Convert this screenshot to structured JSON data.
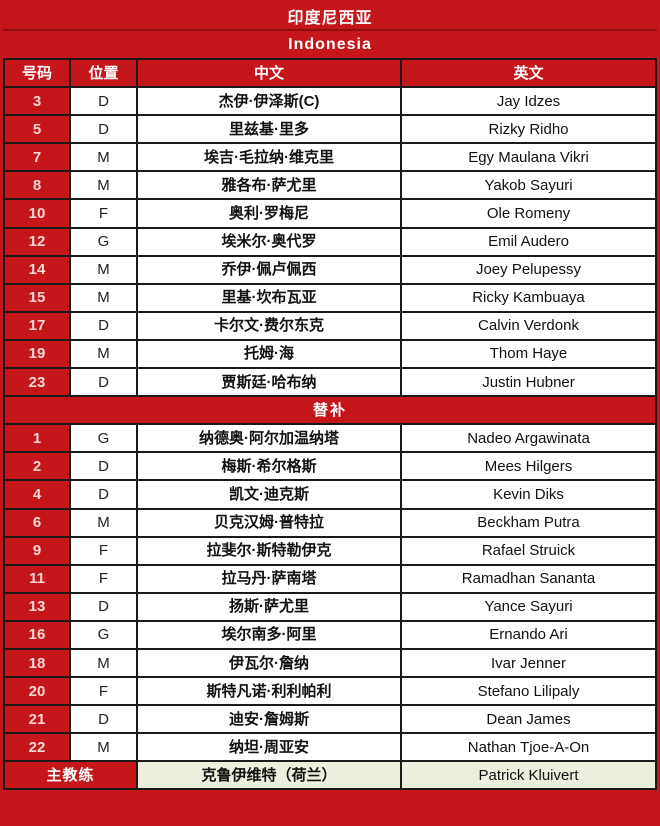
{
  "header": {
    "title_zh": "印度尼西亚",
    "title_en": "Indonesia"
  },
  "columns": [
    "号码",
    "位置",
    "中文",
    "英文"
  ],
  "sections": [
    {
      "label": null,
      "players": [
        [
          "3",
          "D",
          "杰伊·伊泽斯(C)",
          "Jay Idzes"
        ],
        [
          "5",
          "D",
          "里兹基·里多",
          "Rizky Ridho"
        ],
        [
          "7",
          "M",
          "埃吉·毛拉纳·维克里",
          "Egy Maulana Vikri"
        ],
        [
          "8",
          "M",
          "雅各布·萨尤里",
          "Yakob Sayuri"
        ],
        [
          "10",
          "F",
          "奥利·罗梅尼",
          "Ole Romeny"
        ],
        [
          "12",
          "G",
          "埃米尔·奥代罗",
          "Emil Audero"
        ],
        [
          "14",
          "M",
          "乔伊·佩卢佩西",
          "Joey Pelupessy"
        ],
        [
          "15",
          "M",
          "里基·坎布瓦亚",
          "Ricky Kambuaya"
        ],
        [
          "17",
          "D",
          "卡尔文·费尔东克",
          "Calvin Verdonk"
        ],
        [
          "19",
          "M",
          "托姆·海",
          "Thom Haye"
        ],
        [
          "23",
          "D",
          "贾斯廷·哈布纳",
          "Justin Hubner"
        ]
      ]
    },
    {
      "label": "替补",
      "players": [
        [
          "1",
          "G",
          "纳德奥·阿尔加温纳塔",
          "Nadeo Argawinata"
        ],
        [
          "2",
          "D",
          "梅斯·希尔格斯",
          "Mees Hilgers"
        ],
        [
          "4",
          "D",
          "凯文·迪克斯",
          "Kevin Diks"
        ],
        [
          "6",
          "M",
          "贝克汉姆·普特拉",
          "Beckham Putra"
        ],
        [
          "9",
          "F",
          "拉斐尔·斯特勒伊克",
          "Rafael Struick"
        ],
        [
          "11",
          "F",
          "拉马丹·萨南塔",
          "Ramadhan Sananta"
        ],
        [
          "13",
          "D",
          "扬斯·萨尤里",
          "Yance Sayuri"
        ],
        [
          "16",
          "G",
          "埃尔南多·阿里",
          "Ernando Ari"
        ],
        [
          "18",
          "M",
          "伊瓦尔·詹纳",
          "Ivar Jenner"
        ],
        [
          "20",
          "F",
          "斯特凡诺·利利帕利",
          "Stefano Lilipaly"
        ],
        [
          "21",
          "D",
          "迪安·詹姆斯",
          "Dean James"
        ],
        [
          "22",
          "M",
          "纳坦·周亚安",
          "Nathan Tjoe-A-On"
        ]
      ]
    }
  ],
  "coach": {
    "label": "主教练",
    "name_zh": "克鲁伊维特（荷兰）",
    "name_en": "Patrick Kluivert"
  },
  "colors": {
    "red": "#c5161a",
    "red_separator": "#8f0e10",
    "gridline": "#1a1a1a",
    "coach_bg": "#edeedd",
    "number_text": "#ffd6d6"
  }
}
